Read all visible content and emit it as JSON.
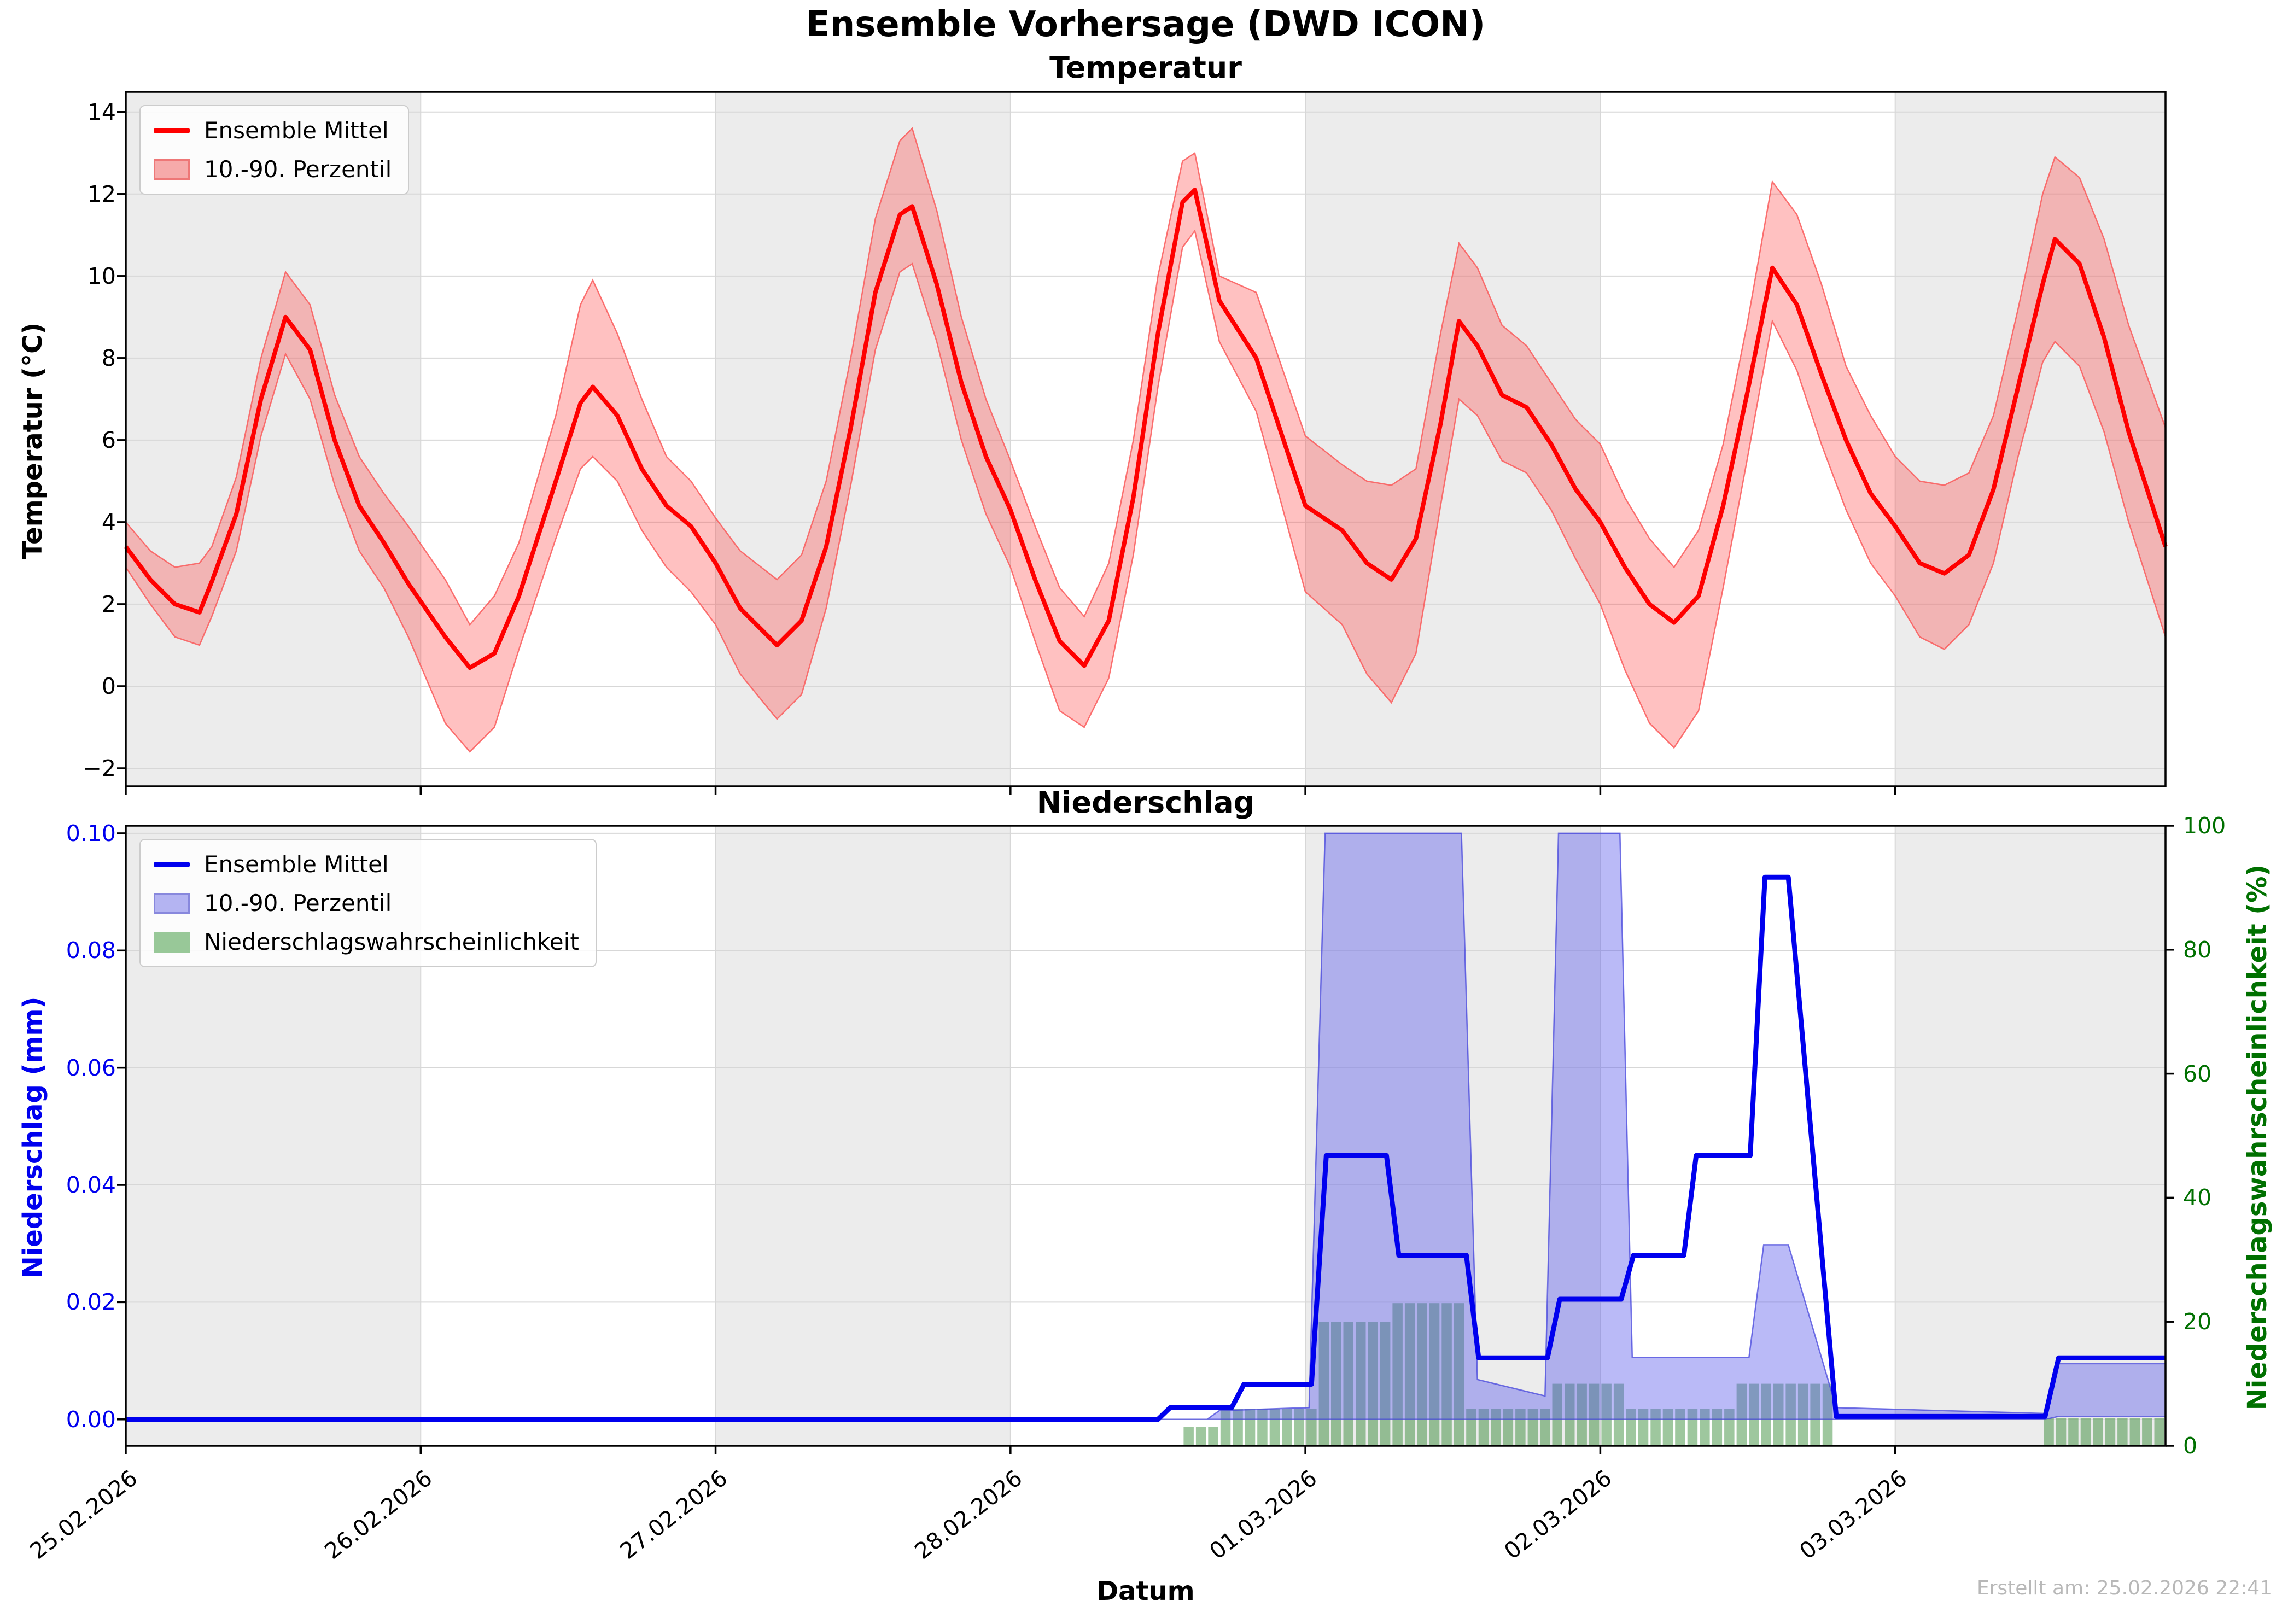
{
  "suptitle": "Ensemble Vorhersage (DWD ICON)",
  "footer": "Erstellt am: 25.02.2026 22:41",
  "colors": {
    "temp_line": "#ff0000",
    "temp_band_fill": "rgba(255,50,50,0.30)",
    "temp_band_edge": "rgba(250,90,90,0.85)",
    "precip_line": "#0000ee",
    "precip_band_fill": "rgba(90,90,235,0.42)",
    "precip_band_edge": "rgba(70,70,220,0.75)",
    "prob_bar_fill": "rgba(40,130,40,0.45)",
    "axis_blue": "#0000ee",
    "axis_green": "#007000",
    "day_shading": "#ececec",
    "grid": "#d7d7d7",
    "spine": "#000000",
    "legend_temp_patch": "#f6aaaa",
    "legend_precip_patch": "#b4b4f2",
    "legend_prob_patch": "#98c898"
  },
  "temperature_panel": {
    "title": "Temperatur",
    "ylabel": "Temperatur (°C)",
    "legend": {
      "mean": "Ensemble Mittel",
      "band": "10.-90. Perzentil"
    },
    "y_ticks": [
      {
        "v": -2,
        "label": "−2"
      },
      {
        "v": 0,
        "label": "0"
      },
      {
        "v": 2,
        "label": "2"
      },
      {
        "v": 4,
        "label": "4"
      },
      {
        "v": 6,
        "label": "6"
      },
      {
        "v": 8,
        "label": "8"
      },
      {
        "v": 10,
        "label": "10"
      },
      {
        "v": 12,
        "label": "12"
      },
      {
        "v": 14,
        "label": "14"
      }
    ],
    "ylim": [
      -2.44,
      14.49
    ]
  },
  "precip_panel": {
    "title": "Niederschlag",
    "ylabel_left": "Niederschlag (mm)",
    "ylabel_right": "Niederschlagswahrscheinlichkeit (%)",
    "legend": {
      "mean": "Ensemble Mittel",
      "band": "10.-90. Perzentil",
      "prob": "Niederschlagswahrscheinlichkeit"
    },
    "y_ticks_mm": [
      {
        "v": 0.0,
        "label": "0.00"
      },
      {
        "v": 0.02,
        "label": "0.02"
      },
      {
        "v": 0.04,
        "label": "0.04"
      },
      {
        "v": 0.06,
        "label": "0.06"
      },
      {
        "v": 0.08,
        "label": "0.08"
      },
      {
        "v": 0.1,
        "label": "0.10"
      }
    ],
    "y_ticks_pct": [
      {
        "v": 0,
        "label": "0"
      },
      {
        "v": 20,
        "label": "20"
      },
      {
        "v": 40,
        "label": "40"
      },
      {
        "v": 60,
        "label": "60"
      },
      {
        "v": 80,
        "label": "80"
      },
      {
        "v": 100,
        "label": "100"
      }
    ],
    "ylim_mm": [
      -0.0045,
      0.1013
    ],
    "ylim_pct": [
      0,
      100
    ]
  },
  "x_axis": {
    "label": "Datum",
    "total_hours": 166,
    "tick_hours": [
      0,
      24,
      48,
      72,
      96,
      120,
      144
    ],
    "tick_labels": [
      "25.02.2026",
      "26.02.2026",
      "27.02.2026",
      "28.02.2026",
      "01.03.2026",
      "02.03.2026",
      "03.03.2026"
    ],
    "shaded_day_starts": [
      0,
      48,
      96,
      144
    ]
  },
  "chart_data": [
    {
      "type": "line",
      "title": "Temperatur",
      "xlabel": "Datum",
      "ylabel": "Temperatur (°C)",
      "ylim": [
        -2.44,
        14.49
      ],
      "legend_position": "upper left",
      "grid": true,
      "series_note": "points are [hours since 25.02.2026 00:00, ensemble mean °C, 10th percentile, 90th percentile]",
      "points": [
        [
          0,
          3.4,
          2.9,
          4.0
        ],
        [
          2,
          2.6,
          2.0,
          3.3
        ],
        [
          4,
          2.0,
          1.2,
          2.9
        ],
        [
          6,
          1.8,
          1.0,
          3.0
        ],
        [
          7,
          2.55,
          1.7,
          3.4
        ],
        [
          9,
          4.2,
          3.3,
          5.1
        ],
        [
          11,
          7.0,
          6.1,
          8.0
        ],
        [
          13,
          9.0,
          8.1,
          10.1
        ],
        [
          15,
          8.2,
          7.0,
          9.3
        ],
        [
          17,
          6.0,
          4.9,
          7.1
        ],
        [
          19,
          4.4,
          3.3,
          5.6
        ],
        [
          21,
          3.5,
          2.4,
          4.7
        ],
        [
          23,
          2.5,
          1.2,
          3.9
        ],
        [
          26,
          1.2,
          -0.9,
          2.6
        ],
        [
          28,
          0.45,
          -1.6,
          1.5
        ],
        [
          30,
          0.8,
          -1.0,
          2.2
        ],
        [
          32,
          2.2,
          0.9,
          3.5
        ],
        [
          35,
          5.0,
          3.6,
          6.6
        ],
        [
          37,
          6.9,
          5.3,
          9.3
        ],
        [
          38,
          7.3,
          5.6,
          9.9
        ],
        [
          40,
          6.6,
          5.0,
          8.6
        ],
        [
          42,
          5.3,
          3.8,
          7.0
        ],
        [
          44,
          4.4,
          2.9,
          5.6
        ],
        [
          46,
          3.9,
          2.3,
          5.0
        ],
        [
          48,
          3.0,
          1.5,
          4.1
        ],
        [
          50,
          1.9,
          0.3,
          3.3
        ],
        [
          53,
          1.0,
          -0.8,
          2.6
        ],
        [
          55,
          1.6,
          -0.2,
          3.2
        ],
        [
          57,
          3.4,
          1.9,
          5.0
        ],
        [
          59,
          6.3,
          4.9,
          8.0
        ],
        [
          61,
          9.6,
          8.2,
          11.4
        ],
        [
          63,
          11.5,
          10.1,
          13.3
        ],
        [
          64,
          11.7,
          10.3,
          13.6
        ],
        [
          66,
          9.8,
          8.4,
          11.6
        ],
        [
          68,
          7.4,
          6.0,
          9.0
        ],
        [
          70,
          5.6,
          4.2,
          7.0
        ],
        [
          72,
          4.3,
          2.9,
          5.5
        ],
        [
          74,
          2.6,
          1.1,
          3.9
        ],
        [
          76,
          1.1,
          -0.6,
          2.4
        ],
        [
          78,
          0.5,
          -1.0,
          1.7
        ],
        [
          80,
          1.6,
          0.2,
          3.0
        ],
        [
          82,
          4.6,
          3.2,
          6.0
        ],
        [
          84,
          8.6,
          7.3,
          10.0
        ],
        [
          86,
          11.8,
          10.7,
          12.8
        ],
        [
          87,
          12.1,
          11.1,
          13.0
        ],
        [
          89,
          9.4,
          8.4,
          10.0
        ],
        [
          92,
          8.0,
          6.7,
          9.6
        ],
        [
          96,
          4.4,
          2.3,
          6.1
        ],
        [
          99,
          3.8,
          1.5,
          5.4
        ],
        [
          101,
          3.0,
          0.3,
          5.0
        ],
        [
          103,
          2.6,
          -0.4,
          4.9
        ],
        [
          105,
          3.6,
          0.8,
          5.3
        ],
        [
          107,
          6.4,
          4.4,
          8.6
        ],
        [
          108.5,
          8.9,
          7.0,
          10.8
        ],
        [
          110,
          8.3,
          6.6,
          10.2
        ],
        [
          112,
          7.1,
          5.5,
          8.8
        ],
        [
          114,
          6.8,
          5.2,
          8.3
        ],
        [
          116,
          5.9,
          4.3,
          7.4
        ],
        [
          118,
          4.8,
          3.1,
          6.5
        ],
        [
          120,
          4.0,
          2.0,
          5.9
        ],
        [
          122,
          2.9,
          0.4,
          4.6
        ],
        [
          124,
          2.0,
          -0.9,
          3.6
        ],
        [
          126,
          1.55,
          -1.5,
          2.9
        ],
        [
          128,
          2.2,
          -0.6,
          3.8
        ],
        [
          130,
          4.4,
          2.4,
          5.9
        ],
        [
          132,
          7.2,
          5.6,
          8.9
        ],
        [
          134,
          10.2,
          8.9,
          12.3
        ],
        [
          136,
          9.3,
          7.7,
          11.5
        ],
        [
          138,
          7.6,
          5.9,
          9.8
        ],
        [
          140,
          6.0,
          4.3,
          7.8
        ],
        [
          142,
          4.7,
          3.0,
          6.6
        ],
        [
          144,
          3.9,
          2.2,
          5.6
        ],
        [
          146,
          3.0,
          1.2,
          5.0
        ],
        [
          148,
          2.75,
          0.9,
          4.9
        ],
        [
          150,
          3.2,
          1.5,
          5.2
        ],
        [
          152,
          4.8,
          3.0,
          6.6
        ],
        [
          154,
          7.3,
          5.6,
          9.2
        ],
        [
          156,
          9.8,
          7.9,
          12.0
        ],
        [
          157,
          10.9,
          8.4,
          12.9
        ],
        [
          159,
          10.3,
          7.8,
          12.4
        ],
        [
          161,
          8.5,
          6.2,
          10.9
        ],
        [
          163,
          6.2,
          4.0,
          8.8
        ],
        [
          166,
          3.4,
          1.2,
          6.3
        ]
      ]
    },
    {
      "type": "line+bar",
      "title": "Niederschlag",
      "xlabel": "Datum",
      "ylabel_left": "Niederschlag (mm)",
      "ylabel_right": "Niederschlagswahrscheinlichkeit (%)",
      "ylim_left": [
        -0.0045,
        0.1013
      ],
      "ylim_right": [
        0,
        100
      ],
      "mean_line_mm": [
        [
          0,
          0
        ],
        [
          84,
          0
        ],
        [
          85,
          0.002
        ],
        [
          90,
          0.002
        ],
        [
          91,
          0.006
        ],
        [
          96.5,
          0.006
        ],
        [
          97.7,
          0.045
        ],
        [
          102.6,
          0.045
        ],
        [
          103.6,
          0.028
        ],
        [
          109.1,
          0.028
        ],
        [
          110.1,
          0.0105
        ],
        [
          115.7,
          0.0105
        ],
        [
          116.7,
          0.0205
        ],
        [
          121.7,
          0.0205
        ],
        [
          122.7,
          0.028
        ],
        [
          126.8,
          0.028
        ],
        [
          127.8,
          0.045
        ],
        [
          132.2,
          0.045
        ],
        [
          133.4,
          0.0925
        ],
        [
          135.3,
          0.0925
        ],
        [
          139.2,
          0.0005
        ],
        [
          156.2,
          0.0005
        ],
        [
          157.3,
          0.0105
        ],
        [
          166,
          0.0105
        ]
      ],
      "band_mm": [
        [
          0,
          0,
          0
        ],
        [
          88,
          0,
          0
        ],
        [
          89,
          0,
          0.0015
        ],
        [
          96.3,
          0,
          0.002
        ],
        [
          97.6,
          0,
          0.1
        ],
        [
          108.7,
          0,
          0.1
        ],
        [
          110,
          0,
          0.0068
        ],
        [
          115.5,
          0,
          0.004
        ],
        [
          116.6,
          0,
          0.1
        ],
        [
          121.6,
          0,
          0.1
        ],
        [
          122.6,
          0,
          0.0106
        ],
        [
          132.1,
          0,
          0.0106
        ],
        [
          133.3,
          0,
          0.0298
        ],
        [
          135.3,
          0,
          0.0298
        ],
        [
          139.2,
          0,
          0.002
        ],
        [
          156.2,
          0,
          0.001
        ],
        [
          157.3,
          0.0005,
          0.0095
        ],
        [
          166,
          0.0005,
          0.0095
        ]
      ],
      "probability_bars_pct": [
        [
          86,
          89,
          3
        ],
        [
          89,
          97,
          6
        ],
        [
          97,
          103,
          20
        ],
        [
          103,
          109,
          23
        ],
        [
          109,
          116,
          6
        ],
        [
          116,
          122,
          10
        ],
        [
          122,
          131,
          6
        ],
        [
          131,
          139,
          10
        ],
        [
          156,
          166,
          4.5
        ]
      ]
    }
  ]
}
